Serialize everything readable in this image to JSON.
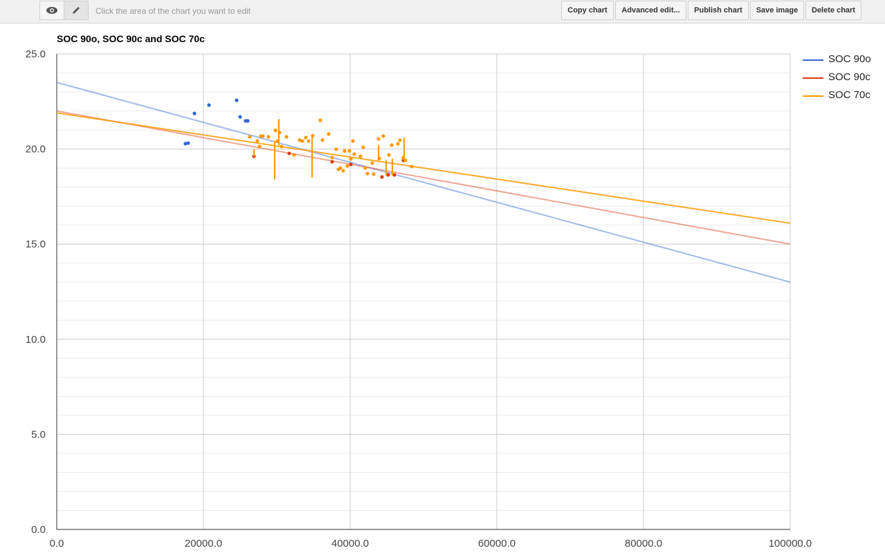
{
  "toolbar": {
    "hint": "Click the area of the chart you want to edit",
    "preview_icon": "eye-icon",
    "edit_icon": "pencil-icon",
    "buttons": [
      "Copy chart",
      "Advanced edit...",
      "Publish chart",
      "Save image",
      "Delete chart"
    ]
  },
  "chart_data": {
    "type": "scatter",
    "title": "SOC 90o, SOC 90c and SOC 70c",
    "xlim": [
      0,
      100000
    ],
    "ylim": [
      0,
      25
    ],
    "x_ticks": [
      "0.0",
      "20000.0",
      "40000.0",
      "60000.0",
      "80000.0",
      "100000.0"
    ],
    "y_ticks": [
      "0.0",
      "5.0",
      "10.0",
      "15.0",
      "20.0",
      "25.0"
    ],
    "grid": true,
    "legend_position": "right",
    "series": [
      {
        "name": "SOC 90o",
        "color": "#3366cc",
        "points": [
          [
            17547,
            20.28
          ],
          [
            17925,
            20.31
          ],
          [
            18774,
            21.87
          ],
          [
            20755,
            22.31
          ],
          [
            24528,
            22.56
          ],
          [
            25000,
            21.69
          ],
          [
            25755,
            21.48
          ],
          [
            26038,
            21.48
          ]
        ],
        "trendline": [
          [
            0,
            23.5
          ],
          [
            100000,
            13.0
          ]
        ]
      },
      {
        "name": "SOC 90c",
        "color": "#dc3912",
        "points": [
          [
            26887,
            19.62
          ],
          [
            31698,
            19.77
          ],
          [
            37547,
            19.33
          ],
          [
            40094,
            19.19
          ],
          [
            44340,
            18.53
          ],
          [
            45189,
            18.64
          ],
          [
            46038,
            18.64
          ],
          [
            47264,
            19.4
          ]
        ],
        "trendline": [
          [
            0,
            22.0
          ],
          [
            100000,
            15.0
          ]
        ]
      },
      {
        "name": "SOC 70c",
        "color": "#ff9900",
        "points": [
          [
            26321,
            20.64
          ],
          [
            27358,
            20.42
          ],
          [
            27642,
            20.13
          ],
          [
            27830,
            20.68
          ],
          [
            28113,
            20.68
          ],
          [
            28868,
            20.64
          ],
          [
            29811,
            20.98
          ],
          [
            30094,
            20.42
          ],
          [
            30377,
            20.87
          ],
          [
            30660,
            20.13
          ],
          [
            31321,
            20.64
          ],
          [
            32358,
            19.69
          ],
          [
            33113,
            20.47
          ],
          [
            33491,
            20.42
          ],
          [
            33962,
            20.6
          ],
          [
            34340,
            20.42
          ],
          [
            34906,
            20.7
          ],
          [
            35943,
            21.51
          ],
          [
            36226,
            20.47
          ],
          [
            37075,
            20.79
          ],
          [
            37547,
            19.55
          ],
          [
            38113,
            19.99
          ],
          [
            38396,
            18.93
          ],
          [
            38679,
            19.0
          ],
          [
            39057,
            18.86
          ],
          [
            39245,
            19.9
          ],
          [
            39623,
            19.11
          ],
          [
            39906,
            19.9
          ],
          [
            40094,
            19.48
          ],
          [
            40377,
            20.42
          ],
          [
            40566,
            19.73
          ],
          [
            41415,
            19.62
          ],
          [
            41792,
            20.09
          ],
          [
            42075,
            19.0
          ],
          [
            42358,
            18.71
          ],
          [
            43019,
            19.26
          ],
          [
            43208,
            18.68
          ],
          [
            43868,
            20.53
          ],
          [
            43962,
            19.51
          ],
          [
            44528,
            20.68
          ],
          [
            45283,
            19.69
          ],
          [
            45660,
            20.2
          ],
          [
            46509,
            20.27
          ],
          [
            46792,
            20.46
          ],
          [
            47264,
            19.55
          ],
          [
            47547,
            19.4
          ],
          [
            48396,
            19.08
          ]
        ],
        "segments": [
          [
            26887,
            20.0,
            19.6
          ],
          [
            29717,
            20.42,
            18.4
          ],
          [
            30283,
            21.58,
            20.2
          ],
          [
            34811,
            20.64,
            18.5
          ],
          [
            43868,
            20.2,
            19.4
          ],
          [
            44906,
            19.4,
            18.6
          ],
          [
            45755,
            19.5,
            18.6
          ],
          [
            47358,
            20.6,
            19.4
          ]
        ],
        "trendline": [
          [
            0,
            21.9
          ],
          [
            100000,
            16.1
          ]
        ]
      }
    ]
  }
}
